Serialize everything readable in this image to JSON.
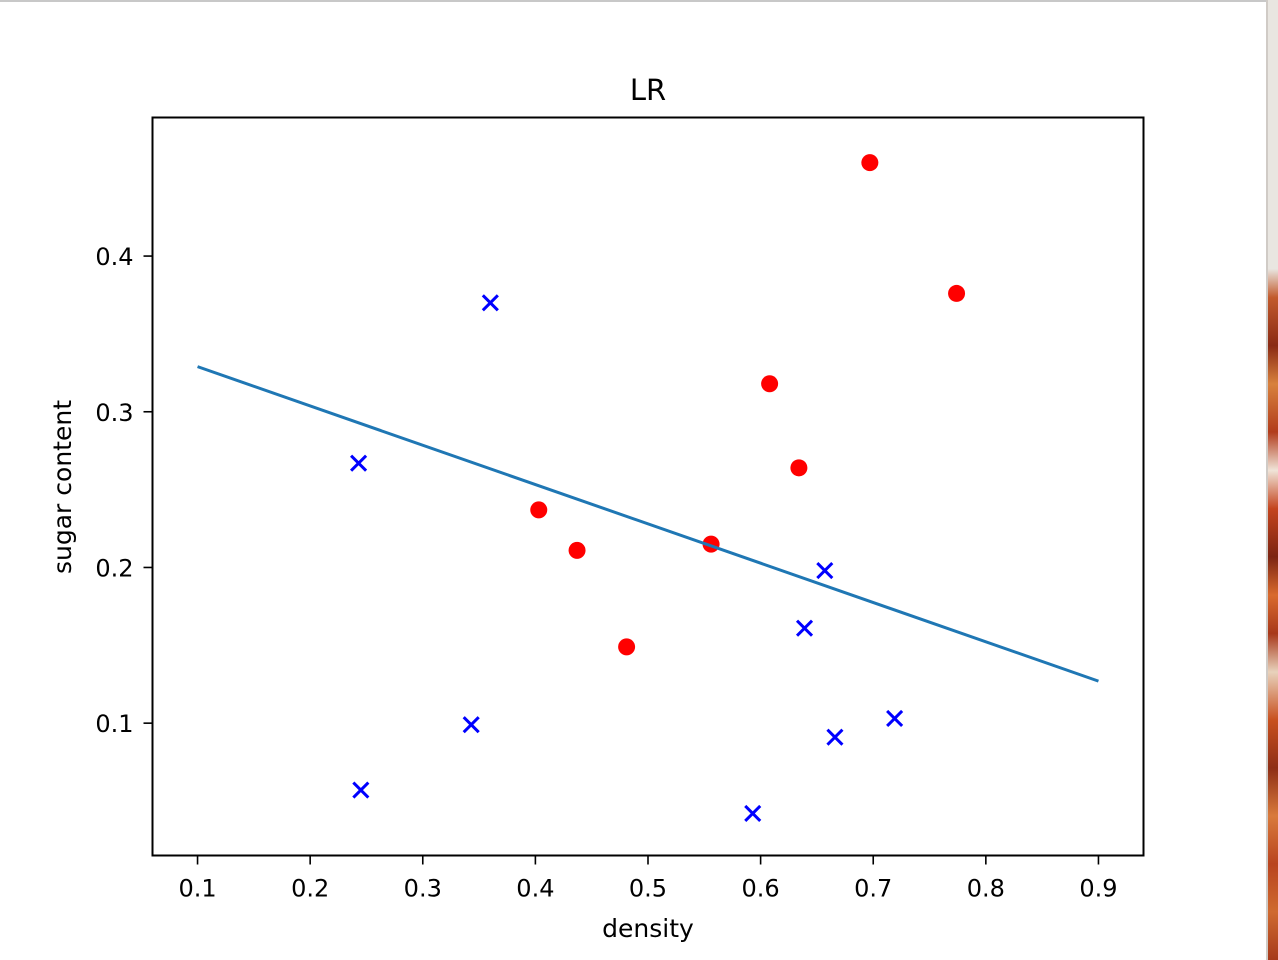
{
  "chart_data": {
    "type": "scatter",
    "title": "LR",
    "xlabel": "density",
    "ylabel": "sugar content",
    "xlim": [
      0.06,
      0.94
    ],
    "ylim": [
      0.015,
      0.489
    ],
    "xticks": [
      0.1,
      0.2,
      0.3,
      0.4,
      0.5,
      0.6,
      0.7,
      0.8,
      0.9
    ],
    "xtick_labels": [
      "0.1",
      "0.2",
      "0.3",
      "0.4",
      "0.5",
      "0.6",
      "0.7",
      "0.8",
      "0.9"
    ],
    "yticks": [
      0.1,
      0.2,
      0.3,
      0.4
    ],
    "ytick_labels": [
      "0.1",
      "0.2",
      "0.3",
      "0.4"
    ],
    "grid": false,
    "series": [
      {
        "marker": "circle",
        "color": "#ff0000",
        "points": [
          {
            "x": 0.697,
            "y": 0.46
          },
          {
            "x": 0.774,
            "y": 0.376
          },
          {
            "x": 0.608,
            "y": 0.318
          },
          {
            "x": 0.634,
            "y": 0.264
          },
          {
            "x": 0.403,
            "y": 0.237
          },
          {
            "x": 0.437,
            "y": 0.211
          },
          {
            "x": 0.556,
            "y": 0.215
          },
          {
            "x": 0.481,
            "y": 0.149
          }
        ]
      },
      {
        "marker": "x",
        "color": "#0000ff",
        "points": [
          {
            "x": 0.36,
            "y": 0.37
          },
          {
            "x": 0.243,
            "y": 0.267
          },
          {
            "x": 0.657,
            "y": 0.198
          },
          {
            "x": 0.639,
            "y": 0.161
          },
          {
            "x": 0.343,
            "y": 0.099
          },
          {
            "x": 0.666,
            "y": 0.091
          },
          {
            "x": 0.719,
            "y": 0.103
          },
          {
            "x": 0.245,
            "y": 0.057
          },
          {
            "x": 0.593,
            "y": 0.042
          }
        ]
      },
      {
        "type": "line",
        "color": "#1f77b4",
        "points": [
          {
            "x": 0.1,
            "y": 0.329
          },
          {
            "x": 0.9,
            "y": 0.127
          }
        ]
      }
    ]
  }
}
